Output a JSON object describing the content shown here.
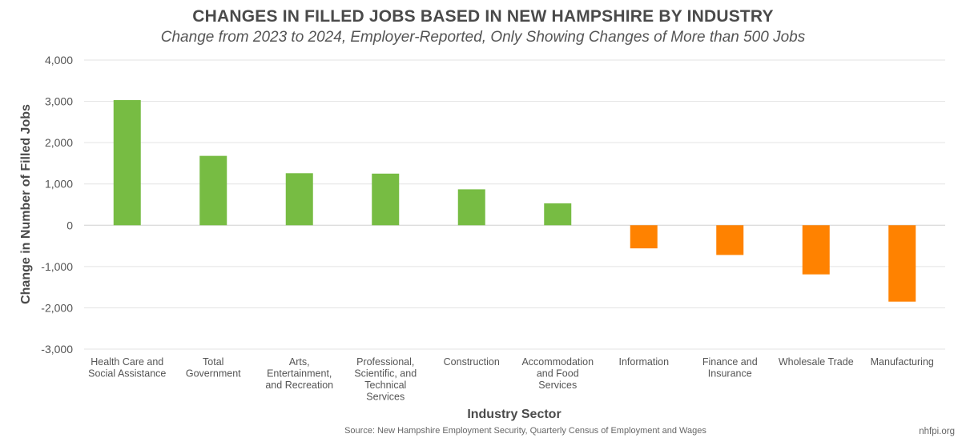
{
  "chart_data": {
    "type": "bar",
    "title": "CHANGES IN FILLED JOBS BASED IN NEW HAMPSHIRE BY INDUSTRY",
    "subtitle": "Change from 2023 to 2024, Employer-Reported, Only Showing Changes of More than 500 Jobs",
    "xlabel": "Industry Sector",
    "ylabel": "Change in Number of Filled Jobs",
    "ylim": [
      -3000,
      4000
    ],
    "yticks": [
      4000,
      3000,
      2000,
      1000,
      0,
      -1000,
      -2000,
      -3000
    ],
    "ytick_labels": [
      "4,000",
      "3,000",
      "2,000",
      "1,000",
      "0",
      "-1,000",
      "-2,000",
      "-3,000"
    ],
    "grid": true,
    "categories": [
      [
        "Health Care and",
        "Social Assistance"
      ],
      [
        "Total",
        "Government"
      ],
      [
        "Arts,",
        "Entertainment,",
        "and Recreation"
      ],
      [
        "Professional,",
        "Scientific, and",
        "Technical",
        "Services"
      ],
      [
        "Construction"
      ],
      [
        "Accommodation",
        "and Food",
        "Services"
      ],
      [
        "Information"
      ],
      [
        "Finance and",
        "Insurance"
      ],
      [
        "Wholesale Trade"
      ],
      [
        "Manufacturing"
      ]
    ],
    "values": [
      3030,
      1680,
      1260,
      1250,
      870,
      530,
      -560,
      -720,
      -1190,
      -1850
    ],
    "colors": {
      "positive": "#77bc43",
      "negative": "#ff8200",
      "grid": "#e3e3e3"
    }
  },
  "footer": {
    "source": "Source: New Hampshire Employment Security, Quarterly Census of Employment and Wages",
    "brand": "nhfpi.org"
  }
}
